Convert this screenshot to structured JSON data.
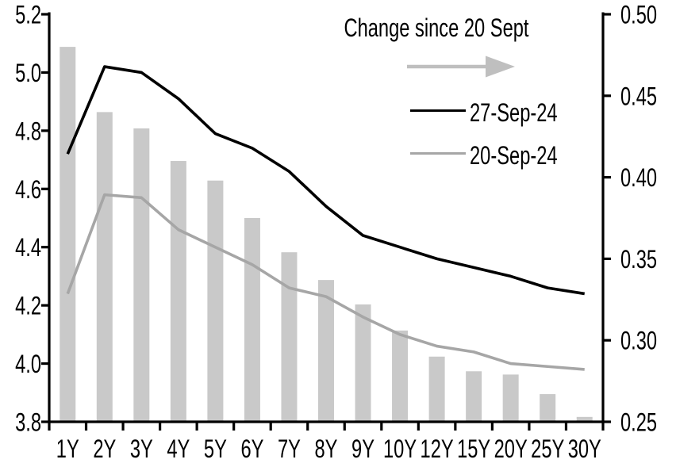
{
  "chart_data": {
    "type": "combo_bar_line",
    "title": "",
    "categories": [
      "1Y",
      "2Y",
      "3Y",
      "4Y",
      "5Y",
      "6Y",
      "7Y",
      "8Y",
      "9Y",
      "10Y",
      "12Y",
      "15Y",
      "20Y",
      "25Y",
      "30Y"
    ],
    "series": [
      {
        "name": "Change since 20 Sept",
        "type": "bar",
        "axis": "right",
        "color": "#c9c9c9",
        "values": [
          0.48,
          0.44,
          0.43,
          0.41,
          0.398,
          0.375,
          0.354,
          0.337,
          0.322,
          0.306,
          0.29,
          0.281,
          0.279,
          0.267,
          0.253
        ]
      },
      {
        "name": "27-Sep-24",
        "type": "line",
        "axis": "left",
        "color": "#000000",
        "values": [
          4.72,
          5.02,
          5.0,
          4.91,
          4.79,
          4.74,
          4.66,
          4.54,
          4.44,
          4.4,
          4.36,
          4.33,
          4.3,
          4.26,
          4.24
        ]
      },
      {
        "name": "20-Sep-24",
        "type": "line",
        "axis": "left",
        "color": "#a6a6a6",
        "values": [
          4.24,
          4.58,
          4.57,
          4.46,
          4.4,
          4.34,
          4.26,
          4.23,
          4.16,
          4.1,
          4.06,
          4.04,
          4.0,
          3.99,
          3.98
        ]
      }
    ],
    "left_axis": {
      "min": 3.8,
      "max": 5.2,
      "ticks": [
        {
          "value": 5.2,
          "label": "5.2"
        },
        {
          "value": 5.0,
          "label": "5.0"
        },
        {
          "value": 4.8,
          "label": "4.8"
        },
        {
          "value": 4.6,
          "label": "4.6"
        },
        {
          "value": 4.4,
          "label": "4.4"
        },
        {
          "value": 4.2,
          "label": "4.2"
        },
        {
          "value": 4.0,
          "label": "4.0"
        },
        {
          "value": 3.8,
          "label": "3.8"
        }
      ]
    },
    "right_axis": {
      "min": 0.25,
      "max": 0.5,
      "ticks": [
        {
          "value": 0.5,
          "label": "0.50"
        },
        {
          "value": 0.45,
          "label": "0.45"
        },
        {
          "value": 0.4,
          "label": "0.40"
        },
        {
          "value": 0.35,
          "label": "0.35"
        },
        {
          "value": 0.3,
          "label": "0.30"
        },
        {
          "value": 0.25,
          "label": "0.25"
        }
      ]
    },
    "legend": {
      "title": "Change since 20 Sept",
      "arrow_icon": "right-arrow",
      "arrow_color": "#bfbfbf",
      "entries": [
        "27-Sep-24",
        "20-Sep-24"
      ]
    },
    "layout_hints": {
      "grid": "off",
      "legend_position": "top-center-inside",
      "background": "#ffffff"
    }
  }
}
